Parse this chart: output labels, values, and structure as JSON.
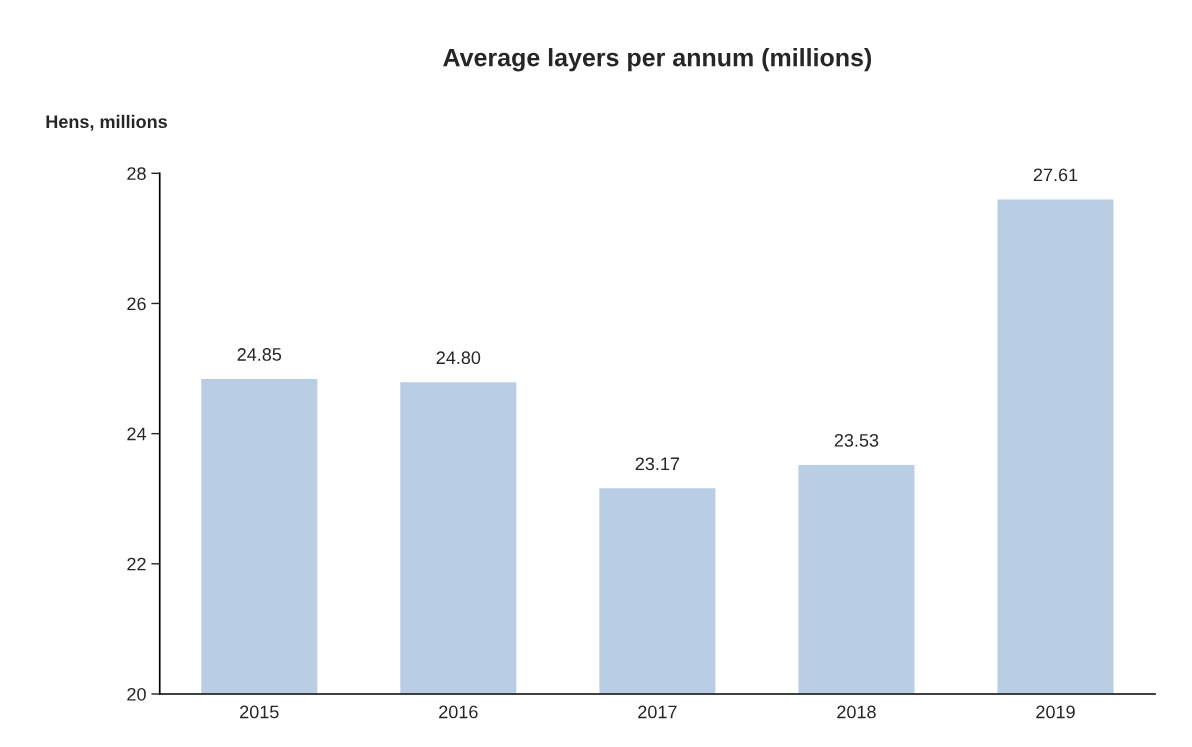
{
  "chart_data": {
    "type": "bar",
    "title": "Average layers per annum (millions)",
    "ylabel": "Hens, millions",
    "categories": [
      "2015",
      "2016",
      "2017",
      "2018",
      "2019"
    ],
    "values": [
      24.85,
      24.8,
      23.17,
      23.53,
      27.61
    ],
    "value_labels": [
      "24.85",
      "24.80",
      "23.17",
      "23.53",
      "27.61"
    ],
    "color": "#b9cde5",
    "ylim": [
      20,
      28
    ],
    "yticks": [
      20,
      22,
      24,
      26,
      28
    ],
    "grid": false,
    "legend": false
  }
}
